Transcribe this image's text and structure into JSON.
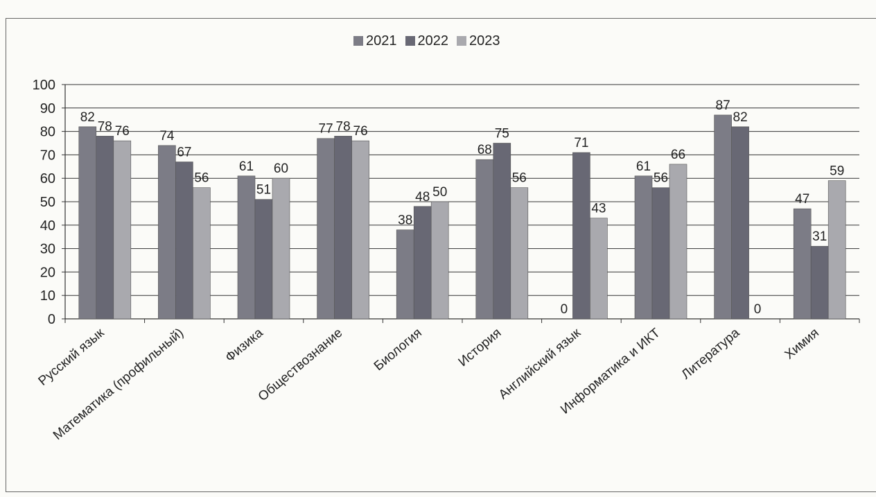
{
  "chart_data": {
    "type": "bar",
    "categories": [
      "Русский язык",
      "Математика (профильный)",
      "Физика",
      "Обществознание",
      "Биология",
      "История",
      "Английский язык",
      "Информатика и ИКТ",
      "Литература",
      "Химия"
    ],
    "series": [
      {
        "name": "2021",
        "values": [
          82,
          74,
          61,
          77,
          38,
          68,
          0,
          61,
          87,
          47
        ],
        "color": "#7c7c86"
      },
      {
        "name": "2022",
        "values": [
          78,
          67,
          51,
          78,
          48,
          75,
          71,
          56,
          82,
          31
        ],
        "color": "#686874"
      },
      {
        "name": "2023",
        "values": [
          76,
          56,
          60,
          76,
          50,
          56,
          43,
          66,
          0,
          59
        ],
        "color": "#a9a9ae"
      }
    ],
    "ylim": [
      0,
      100
    ],
    "yticks": [
      0,
      10,
      20,
      30,
      40,
      50,
      60,
      70,
      80,
      90,
      100
    ],
    "grid": true,
    "legend_position": "top"
  }
}
